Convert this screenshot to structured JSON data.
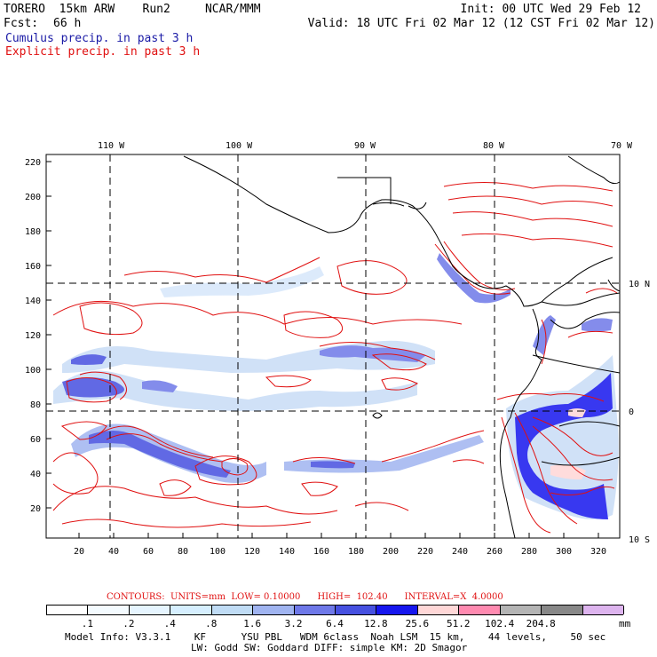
{
  "header": {
    "model_line": "TORERO  15km ARW    Run2     NCAR/MMM",
    "init_line": "Init: 00 UTC Wed 29 Feb 12",
    "fcst_label": "Fcst:",
    "fcst_value": "66 h",
    "valid_line": "Valid: 18 UTC Fri 02 Mar 12 (12 CST Fri 02 Mar 12)",
    "legend_cumulus": "Cumulus precip. in past 3 h",
    "legend_explicit": "Explicit precip. in past 3 h"
  },
  "map": {
    "top_axis_labels": [
      "110 W",
      "100 W",
      "90 W",
      "80 W",
      "70 W"
    ],
    "right_axis_labels": [
      "10 N",
      "0",
      "10 S"
    ],
    "left_axis_labels": [
      "220",
      "200",
      "180",
      "160",
      "140",
      "120",
      "100",
      "80",
      "60",
      "40",
      "20"
    ],
    "bottom_axis_labels": [
      "20",
      "40",
      "60",
      "80",
      "100",
      "120",
      "140",
      "160",
      "180",
      "200",
      "220",
      "240",
      "260",
      "280",
      "300",
      "320"
    ]
  },
  "colors": {
    "cumulus": "#1a1aa6",
    "explicit": "#e01010",
    "coast": "#000000"
  },
  "contours_line": {
    "label": "CONTOURS:  UNITS=mm  LOW= 0.10000      HIGH=  102.40      INTERVAL=X  4.0000"
  },
  "colorbar": {
    "colors": [
      "#ffffff",
      "#f4fbff",
      "#e6f5ff",
      "#d6efff",
      "#c0dcf5",
      "#a0b4f0",
      "#6e78e8",
      "#4650e0",
      "#1616ee",
      "#ffd7d7",
      "#ff8ab0",
      "#b4b4b4",
      "#888888",
      "#ddb4ee"
    ],
    "tick_labels": [
      ".1",
      ".2",
      ".4",
      ".8",
      "1.6",
      "3.2",
      "6.4",
      "12.8",
      "25.6",
      "51.2",
      "102.4",
      "204.8"
    ],
    "unit": "mm"
  },
  "footer": {
    "line1": "Model Info: V3.3.1    KF      YSU PBL   WDM 6class  Noah LSM  15 km,    44 levels,    50 sec",
    "line2": "LW: Godd SW: Goddard DIFF: simple KM: 2D Smagor"
  }
}
